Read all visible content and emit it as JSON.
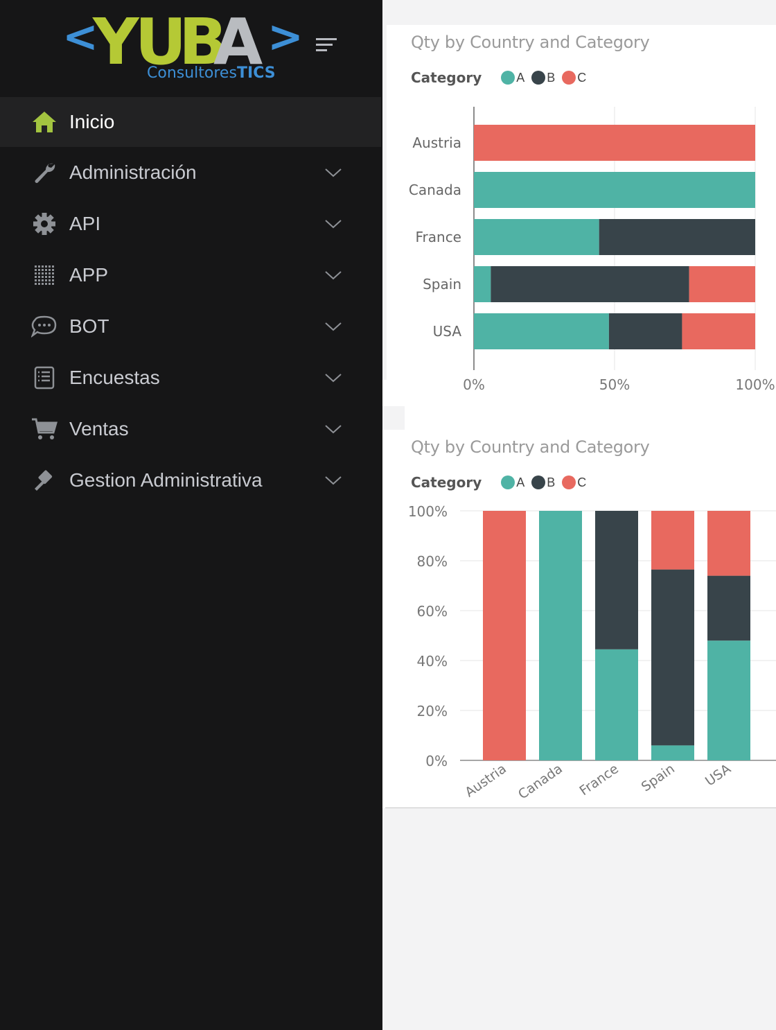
{
  "brand": {
    "logo_text": "YUBA",
    "left_bracket": "<",
    "right_bracket": ">",
    "subtitle_a": "Consultores",
    "subtitle_b": "TICS",
    "colors": {
      "green": "#b5c935",
      "blue": "#3d8fd6",
      "gray": "#b9bcc0"
    }
  },
  "sidebar": {
    "items": [
      {
        "label": "Inicio",
        "icon": "home-icon",
        "active": true
      },
      {
        "label": "Administración",
        "icon": "wrench-icon"
      },
      {
        "label": "API",
        "icon": "gear-icon"
      },
      {
        "label": "APP",
        "icon": "dots-grid-icon"
      },
      {
        "label": "BOT",
        "icon": "chat-bubble-icon"
      },
      {
        "label": "Encuestas",
        "icon": "survey-list-icon"
      },
      {
        "label": "Ventas",
        "icon": "cart-icon"
      },
      {
        "label": "Gestion Administrativa",
        "icon": "gavel-icon"
      }
    ]
  },
  "colors": {
    "A": "#4fb3a5",
    "B": "#38444a",
    "C": "#e8695f",
    "active_icon": "#a3c440"
  },
  "chart_data": [
    {
      "type": "bar",
      "orientation": "horizontal",
      "stacked": "100%",
      "title": "Qty by Country and Category",
      "legend_title": "Category",
      "categories": [
        "Austria",
        "Canada",
        "France",
        "Spain",
        "USA"
      ],
      "series": [
        {
          "name": "A",
          "values": [
            0,
            100,
            44.5,
            6,
            48
          ]
        },
        {
          "name": "B",
          "values": [
            0,
            0,
            55.5,
            70.5,
            26
          ]
        },
        {
          "name": "C",
          "values": [
            100,
            0,
            0,
            23.5,
            26
          ]
        }
      ],
      "xticks": [
        "0%",
        "50%",
        "100%"
      ],
      "xlim": [
        0,
        100
      ]
    },
    {
      "type": "bar",
      "orientation": "vertical",
      "stacked": "100%",
      "title": "Qty by Country and Category",
      "legend_title": "Category",
      "categories": [
        "Austria",
        "Canada",
        "France",
        "Spain",
        "USA"
      ],
      "series": [
        {
          "name": "A",
          "values": [
            0,
            100,
            44.5,
            6,
            48
          ]
        },
        {
          "name": "B",
          "values": [
            0,
            0,
            55.5,
            70.5,
            26
          ]
        },
        {
          "name": "C",
          "values": [
            100,
            0,
            0,
            23.5,
            26
          ]
        }
      ],
      "yticks": [
        "0%",
        "20%",
        "40%",
        "60%",
        "80%",
        "100%"
      ],
      "ylim": [
        0,
        100
      ]
    }
  ]
}
